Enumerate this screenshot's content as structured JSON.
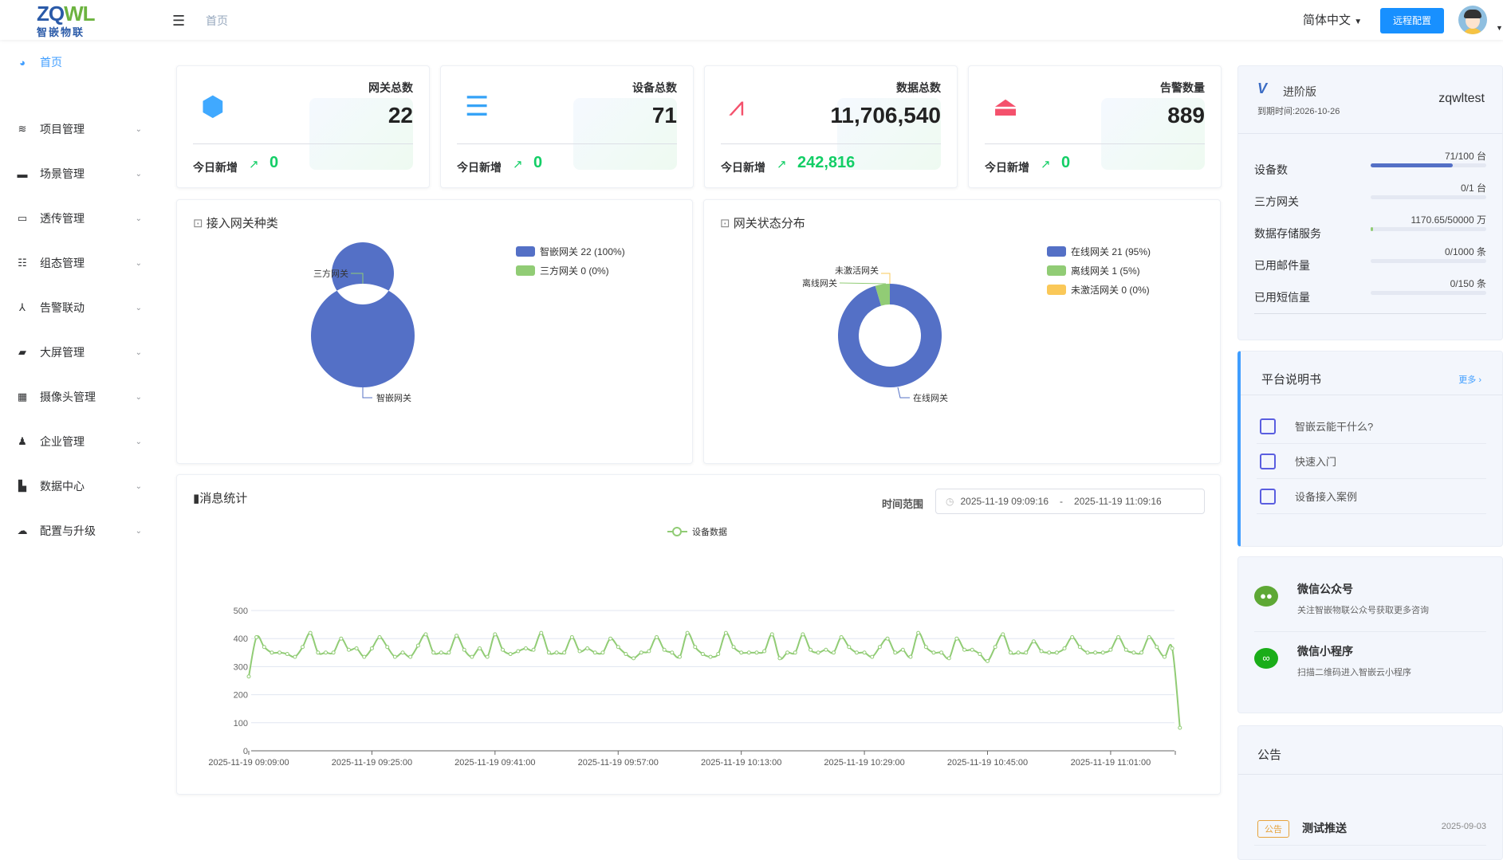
{
  "header": {
    "logo_text": "ZQWL",
    "logo_sub": "智嵌物联",
    "breadcrumb": "首页",
    "language": "简体中文",
    "remote_button": "远程配置"
  },
  "sidebar": {
    "items": [
      {
        "label": "首页",
        "icon": "dashboard-icon"
      },
      {
        "label": "项目管理",
        "icon": "layers-icon"
      },
      {
        "label": "场景管理",
        "icon": "clapper-icon"
      },
      {
        "label": "透传管理",
        "icon": "monitor-icon"
      },
      {
        "label": "组态管理",
        "icon": "list-icon"
      },
      {
        "label": "告警联动",
        "icon": "network-icon"
      },
      {
        "label": "大屏管理",
        "icon": "screen-icon"
      },
      {
        "label": "摄像头管理",
        "icon": "table-icon"
      },
      {
        "label": "企业管理",
        "icon": "user-icon"
      },
      {
        "label": "数据中心",
        "icon": "bar-chart-icon"
      },
      {
        "label": "配置与升级",
        "icon": "cloud-upload-icon"
      }
    ]
  },
  "stats": [
    {
      "title": "网关总数",
      "value": "22",
      "today_label": "今日新增",
      "today": "0",
      "color": "#40a9ff"
    },
    {
      "title": "设备总数",
      "value": "71",
      "today_label": "今日新增",
      "today": "0",
      "color": "#36a3f7"
    },
    {
      "title": "数据总数",
      "value": "11,706,540",
      "today_label": "今日新增",
      "today": "242,816",
      "color": "#f4516c"
    },
    {
      "title": "告警数量",
      "value": "889",
      "today_label": "今日新增",
      "today": "0",
      "color": "#f4516c"
    }
  ],
  "gateway_types": {
    "title": "接入网关种类",
    "slices": [
      {
        "name": "智嵌网关",
        "value": 22,
        "legend": "智嵌网关 22 (100%)",
        "color": "#5470c6"
      },
      {
        "name": "三方网关",
        "value": 0,
        "legend": "三方网关 0 (0%)",
        "color": "#91cc75"
      }
    ]
  },
  "gateway_status": {
    "title": "网关状态分布",
    "slices": [
      {
        "name": "在线网关",
        "value": 21,
        "legend": "在线网关 21 (95%)",
        "color": "#5470c6"
      },
      {
        "name": "离线网关",
        "value": 1,
        "legend": "离线网关 1 (5%)",
        "color": "#91cc75"
      },
      {
        "name": "未激活网关",
        "value": 0,
        "legend": "未激活网关 0 (0%)",
        "color": "#fac858"
      }
    ]
  },
  "messages": {
    "title": "消息统计",
    "range_label": "时间范围",
    "start": "2025-11-19 09:09:16",
    "sep": "-",
    "end": "2025-11-19 11:09:16"
  },
  "chart_data": {
    "type": "line",
    "title": "消息统计",
    "legend": [
      "设备数据"
    ],
    "color": "#91cc75",
    "ylim": [
      0,
      500
    ],
    "yticks": [
      0,
      100,
      200,
      300,
      400,
      500
    ],
    "xlabel": "",
    "ylabel": "",
    "x_unit": "minutes since 2025-11-19 09:09:00",
    "xlim": [
      0,
      120.4
    ],
    "xticks": [
      "2025-11-19 09:09:00",
      "2025-11-19 09:25:00",
      "2025-11-19 09:41:00",
      "2025-11-19 09:57:00",
      "2025-11-19 10:13:00",
      "2025-11-19 10:29:00",
      "2025-11-19 10:45:00",
      "2025-11-19 11:01:00"
    ],
    "values": [
      265,
      405,
      370,
      350,
      350,
      345,
      335,
      370,
      420,
      350,
      350,
      350,
      400,
      360,
      365,
      335,
      365,
      405,
      370,
      335,
      350,
      335,
      375,
      415,
      350,
      350,
      350,
      410,
      360,
      335,
      365,
      335,
      415,
      360,
      345,
      355,
      365,
      360,
      420,
      350,
      350,
      350,
      405,
      355,
      365,
      350,
      350,
      400,
      370,
      345,
      330,
      350,
      355,
      405,
      360,
      350,
      335,
      420,
      370,
      345,
      335,
      345,
      420,
      370,
      350,
      350,
      350,
      355,
      415,
      330,
      350,
      350,
      415,
      360,
      350,
      360,
      350,
      405,
      370,
      350,
      350,
      335,
      370,
      400,
      350,
      360,
      335,
      420,
      370,
      350,
      350,
      330,
      400,
      360,
      360,
      345,
      320,
      370,
      415,
      350,
      350,
      350,
      390,
      355,
      350,
      350,
      365,
      405,
      370,
      350,
      350,
      350,
      360,
      405,
      360,
      350,
      350,
      405,
      370,
      335,
      365,
      82
    ]
  },
  "account": {
    "edition": "进阶版",
    "expire": "到期时间:2026-10-26",
    "user": "zqwltest",
    "usage": [
      {
        "label": "设备数",
        "value": "71/100 台",
        "ratio": 0.71,
        "color": "#5470c6"
      },
      {
        "label": "三方网关",
        "value": "0/1 台",
        "ratio": 0,
        "color": "#5470c6"
      },
      {
        "label": "数据存储服务",
        "value": "1170.65/50000 万",
        "ratio": 0.023,
        "color": "#91cc75"
      },
      {
        "label": "已用邮件量",
        "value": "0/1000 条",
        "ratio": 0,
        "color": "#5470c6"
      },
      {
        "label": "已用短信量",
        "value": "0/150 条",
        "ratio": 0,
        "color": "#5470c6"
      }
    ]
  },
  "docs": {
    "title": "平台说明书",
    "more": "更多 ›",
    "items": [
      "智嵌云能干什么?",
      "快速入门",
      "设备接入案例"
    ]
  },
  "wechat": [
    {
      "title": "微信公众号",
      "desc": "关注智嵌物联公众号获取更多咨询",
      "color": "#5ea835"
    },
    {
      "title": "微信小程序",
      "desc": "扫描二维码进入智嵌云小程序",
      "color": "#1aad19"
    }
  ],
  "notice": {
    "title": "公告",
    "items": [
      {
        "tag": "公告",
        "text": "测试推送",
        "date": "2025-09-03"
      }
    ]
  }
}
